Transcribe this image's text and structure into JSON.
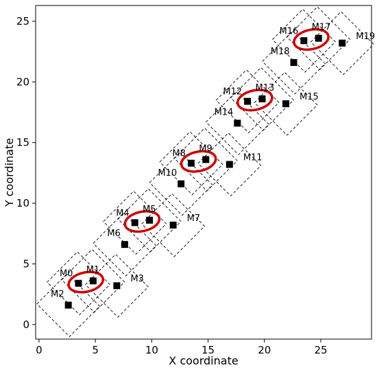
{
  "chart_data": {
    "type": "scatter",
    "title": "",
    "xlabel": "X coordinate",
    "ylabel": "Y coordinate",
    "xlim": [
      -0.3,
      29.5
    ],
    "ylim": [
      -1.2,
      26.3
    ],
    "xticks": [
      0,
      5,
      10,
      15,
      20,
      25
    ],
    "yticks": [
      0,
      5,
      10,
      15,
      20,
      25
    ],
    "grid": false,
    "legend": "none",
    "colors": {
      "marker": "#000000",
      "box": "#000000",
      "ellipse": "#cc0000"
    },
    "points": [
      {
        "label": "M0",
        "x": 3.5,
        "y": 3.4
      },
      {
        "label": "M1",
        "x": 4.8,
        "y": 3.6
      },
      {
        "label": "M2",
        "x": 2.6,
        "y": 1.6
      },
      {
        "label": "M3",
        "x": 6.9,
        "y": 3.2
      },
      {
        "label": "M4",
        "x": 8.5,
        "y": 8.4
      },
      {
        "label": "M5",
        "x": 9.8,
        "y": 8.6
      },
      {
        "label": "M6",
        "x": 7.6,
        "y": 6.6
      },
      {
        "label": "M7",
        "x": 11.9,
        "y": 8.2
      },
      {
        "label": "M8",
        "x": 13.5,
        "y": 13.3
      },
      {
        "label": "M9",
        "x": 14.8,
        "y": 13.6
      },
      {
        "label": "M10",
        "x": 12.6,
        "y": 11.6
      },
      {
        "label": "M11",
        "x": 16.9,
        "y": 13.2
      },
      {
        "label": "M12",
        "x": 18.5,
        "y": 18.4
      },
      {
        "label": "M13",
        "x": 19.8,
        "y": 18.6
      },
      {
        "label": "M14",
        "x": 17.6,
        "y": 16.6
      },
      {
        "label": "M15",
        "x": 21.9,
        "y": 18.2
      },
      {
        "label": "M16",
        "x": 23.5,
        "y": 23.4
      },
      {
        "label": "M17",
        "x": 24.8,
        "y": 23.6
      },
      {
        "label": "M18",
        "x": 22.6,
        "y": 21.6
      },
      {
        "label": "M19",
        "x": 26.9,
        "y": 23.2
      }
    ],
    "pairs": [
      {
        "members": [
          "M0",
          "M1"
        ],
        "cx": 4.15,
        "cy": 3.5
      },
      {
        "members": [
          "M4",
          "M5"
        ],
        "cx": 9.15,
        "cy": 8.5
      },
      {
        "members": [
          "M8",
          "M9"
        ],
        "cx": 14.15,
        "cy": 13.45
      },
      {
        "members": [
          "M12",
          "M13"
        ],
        "cx": 19.15,
        "cy": 18.5
      },
      {
        "members": [
          "M16",
          "M17"
        ],
        "cx": 24.15,
        "cy": 23.5
      }
    ]
  }
}
